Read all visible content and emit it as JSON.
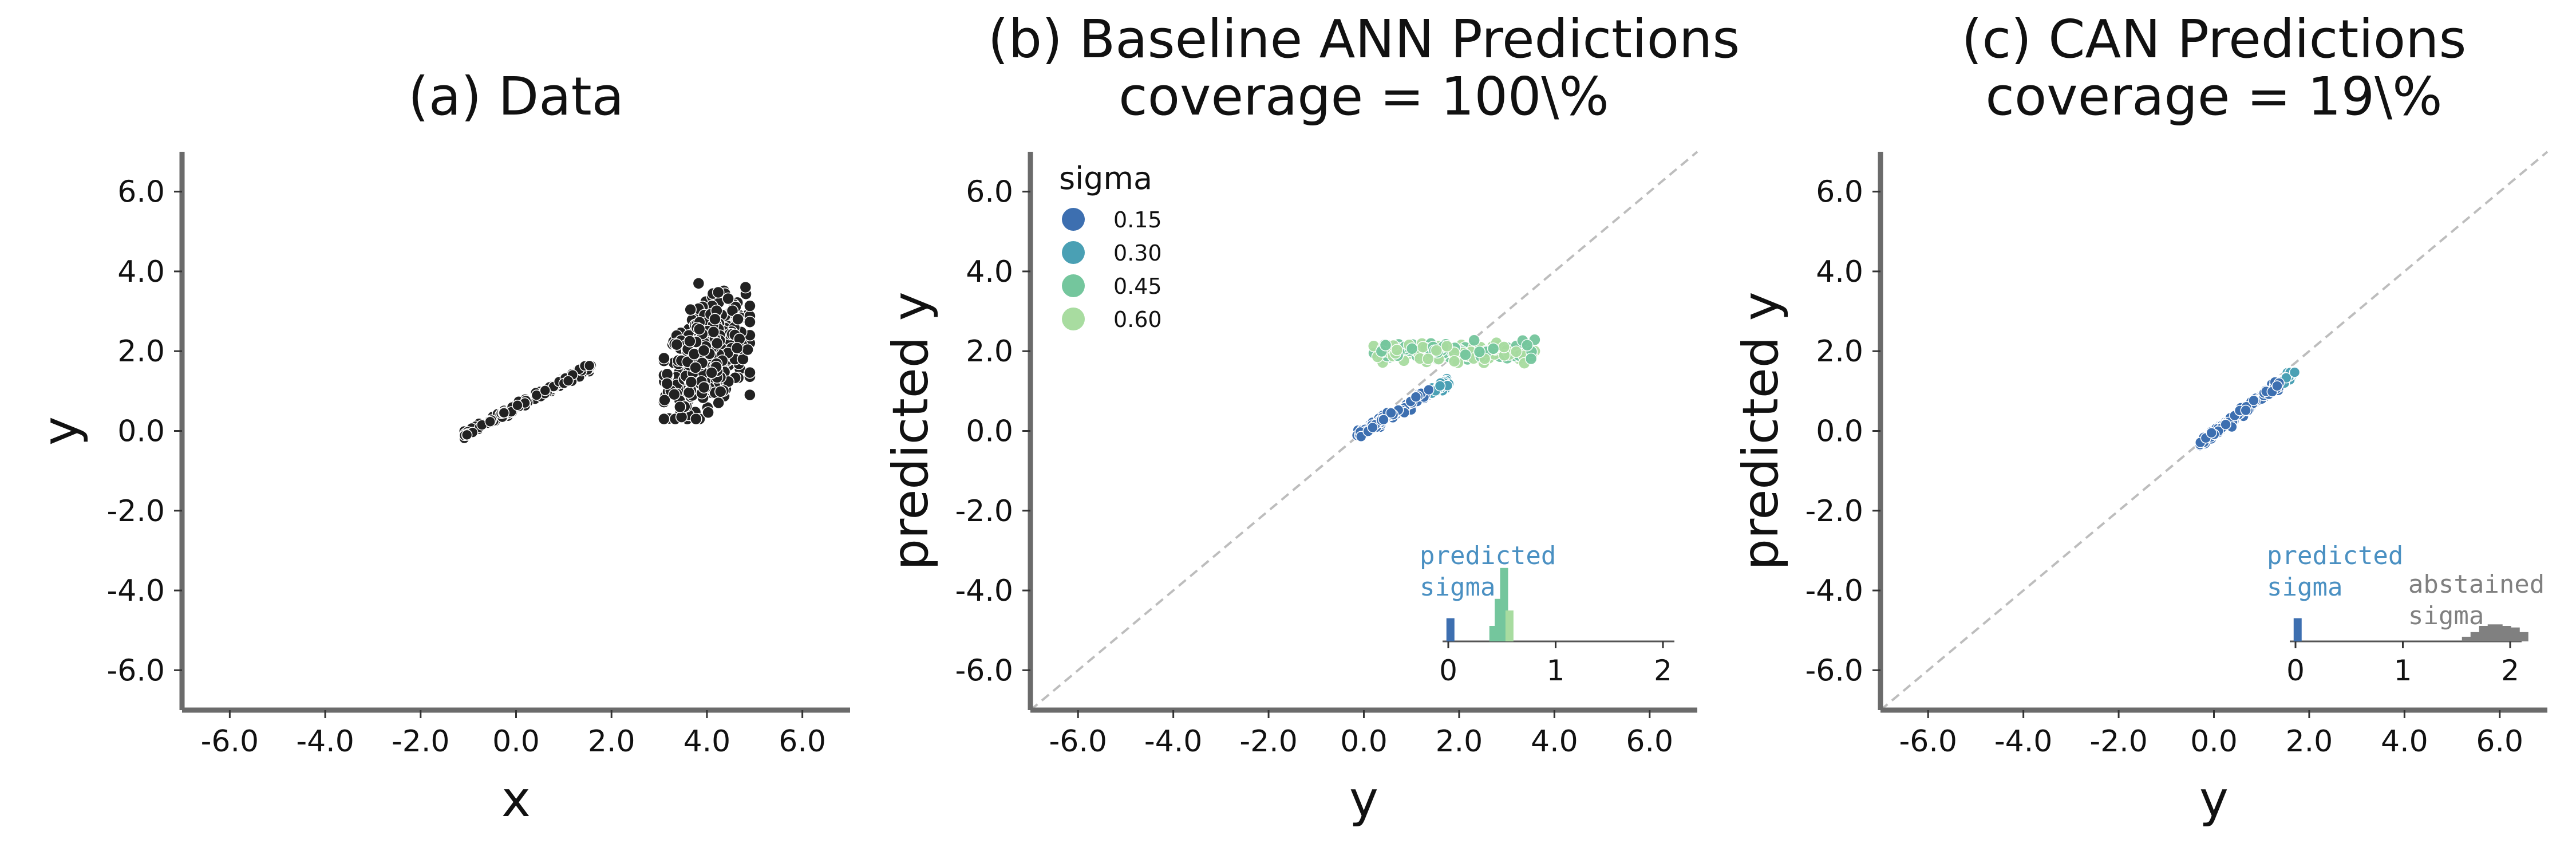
{
  "colors": {
    "spine": "#6b6b6b",
    "identity": "#bdbdbd",
    "data_points": "#222222",
    "predicted_label": "#4a90c2",
    "abstained": "#808080",
    "sigma": [
      "#3d6fb0",
      "#4aa0b4",
      "#74c69d",
      "#a8dca0"
    ]
  },
  "chart_data": [
    {
      "type": "scatter",
      "title": "(a) Data",
      "xlabel": "x",
      "ylabel": "y",
      "xlim": [
        -7,
        7
      ],
      "ylim": [
        -7,
        7
      ],
      "xticks": [
        "-6.0",
        "-4.0",
        "-2.0",
        "0.0",
        "2.0",
        "4.0",
        "6.0"
      ],
      "yticks": [
        "-6.0",
        "-4.0",
        "-2.0",
        "0.0",
        "2.0",
        "4.0",
        "6.0"
      ],
      "grid": false,
      "series": [
        {
          "kind": "linear",
          "x_range": [
            -1.1,
            1.6
          ],
          "slope": 0.65,
          "intercept": 0.6,
          "noise": 0.05
        },
        {
          "kind": "cluster",
          "x_center": 4.0,
          "x_spread": 0.4,
          "y_center": 1.9,
          "y_spread": 0.6,
          "x_extent": [
            3.1,
            4.9
          ],
          "y_extent": [
            0.3,
            3.7
          ]
        }
      ]
    },
    {
      "type": "scatter",
      "title": "(b) Baseline ANN Predictions",
      "subtitle": "coverage = 100\\%",
      "xlabel": "y",
      "ylabel": "predicted y",
      "xlim": [
        -7,
        7
      ],
      "ylim": [
        -7,
        7
      ],
      "xticks": [
        "-6.0",
        "-4.0",
        "-2.0",
        "0.0",
        "2.0",
        "4.0",
        "6.0"
      ],
      "yticks": [
        "-6.0",
        "-4.0",
        "-2.0",
        "0.0",
        "2.0",
        "4.0",
        "6.0"
      ],
      "identity_line": true,
      "legend": {
        "title": "sigma",
        "placement": "top-left",
        "entries": [
          "0.15",
          "0.30",
          "0.45",
          "0.60"
        ]
      },
      "series": [
        {
          "kind": "linear",
          "x_range": [
            -0.15,
            1.8
          ],
          "slope": 0.7,
          "intercept": 0.0,
          "sigma": 0.15
        },
        {
          "kind": "band",
          "x_range": [
            0.2,
            3.6
          ],
          "y_center": 2.0,
          "y_spread": 0.12,
          "sigma": [
            0.45,
            0.6
          ]
        }
      ],
      "inset": {
        "xticks": [
          "0",
          "1",
          "2"
        ],
        "label": "predicted\nsigma",
        "histogram": [
          {
            "x": 0.02,
            "height": 0.3,
            "color_index": 0
          },
          {
            "x": 0.42,
            "height": 0.2,
            "color_index": 2
          },
          {
            "x": 0.47,
            "height": 0.55,
            "color_index": 2
          },
          {
            "x": 0.52,
            "height": 0.95,
            "color_index": 2
          },
          {
            "x": 0.57,
            "height": 0.4,
            "color_index": 3
          }
        ]
      }
    },
    {
      "type": "scatter",
      "title": "(c) CAN Predictions",
      "subtitle": "coverage = 19\\%",
      "xlabel": "y",
      "ylabel": "predicted y",
      "xlim": [
        -7,
        7
      ],
      "ylim": [
        -7,
        7
      ],
      "xticks": [
        "-6.0",
        "-4.0",
        "-2.0",
        "0.0",
        "2.0",
        "4.0",
        "6.0"
      ],
      "yticks": [
        "-6.0",
        "-4.0",
        "-2.0",
        "0.0",
        "2.0",
        "4.0",
        "6.0"
      ],
      "identity_line": true,
      "series": [
        {
          "kind": "linear",
          "x_range": [
            -0.3,
            1.7
          ],
          "slope": 0.9,
          "intercept": -0.05,
          "sigma": 0.15
        }
      ],
      "inset": {
        "xticks": [
          "0",
          "1",
          "2"
        ],
        "label": "predicted\nsigma",
        "abstained_label": "abstained\nsigma",
        "histogram": [
          {
            "x": 0.02,
            "height": 0.3,
            "color_index": 0
          }
        ],
        "abstained_histogram": [
          {
            "x": 1.62,
            "height": 0.06
          },
          {
            "x": 1.7,
            "height": 0.12
          },
          {
            "x": 1.78,
            "height": 0.2
          },
          {
            "x": 1.86,
            "height": 0.22
          },
          {
            "x": 1.94,
            "height": 0.2
          },
          {
            "x": 2.02,
            "height": 0.18
          },
          {
            "x": 2.1,
            "height": 0.12
          }
        ]
      }
    }
  ]
}
